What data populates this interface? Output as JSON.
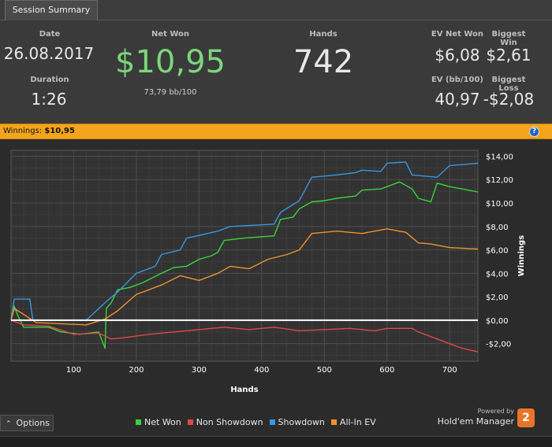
{
  "tab": {
    "label": "Session Summary"
  },
  "summary": {
    "date_label": "Date",
    "date_value": "26.08.2017",
    "duration_label": "Duration",
    "duration_value": "1:26",
    "net_won_label": "Net Won",
    "net_won_value": "$10,95",
    "net_won_sub": "73,79 bb/100",
    "hands_label": "Hands",
    "hands_value": "742",
    "ev_net_won_label": "EV Net Won",
    "ev_net_won_value": "$6,08",
    "biggest_win_label": "Biggest Win",
    "biggest_win_value": "$2,61",
    "ev_bb_label": "EV (bb/100)",
    "ev_bb_value": "40,97",
    "biggest_loss_label": "Biggest Loss",
    "biggest_loss_value": "-$2,08"
  },
  "winbar": {
    "label": "Winnings:",
    "value": "$10,95",
    "help_icon": "help-icon"
  },
  "options_label": "Options",
  "branding": {
    "powered": "Powered by",
    "name": "Hold'em Manager",
    "logo": "2"
  },
  "colors": {
    "net_won": "#3bd23b",
    "non_showdown": "#e04848",
    "showdown": "#3a96e0",
    "all_in_ev": "#f0922e",
    "zero_line": "#ffffff",
    "net_won_value": "#7bd67b"
  },
  "chart_data": {
    "type": "line",
    "xlabel": "Hands",
    "ylabel": "Winnings",
    "xlim": [
      0,
      745
    ],
    "ylim": [
      -3.5,
      14.5
    ],
    "x_ticks": [
      100,
      200,
      300,
      400,
      500,
      600,
      700
    ],
    "y_ticks": [
      {
        "value": 14,
        "label": "$14,00"
      },
      {
        "value": 12,
        "label": "$12,00"
      },
      {
        "value": 10,
        "label": "$10,00"
      },
      {
        "value": 8,
        "label": "$8,00"
      },
      {
        "value": 6,
        "label": "$6,00"
      },
      {
        "value": 4,
        "label": "$4,00"
      },
      {
        "value": 2,
        "label": "$2,00"
      },
      {
        "value": 0,
        "label": "$0,00"
      },
      {
        "value": -2,
        "label": "-$2,00"
      }
    ],
    "grid": true,
    "legend_position": "bottom",
    "series": [
      {
        "name": "Net Won",
        "color": "#3bd23b",
        "points": [
          [
            0,
            0
          ],
          [
            5,
            1.2
          ],
          [
            10,
            0.5
          ],
          [
            20,
            -0.6
          ],
          [
            60,
            -0.6
          ],
          [
            80,
            -1.0
          ],
          [
            110,
            -1.2
          ],
          [
            140,
            -1.0
          ],
          [
            150,
            -2.4
          ],
          [
            152,
            1.0
          ],
          [
            160,
            1.5
          ],
          [
            170,
            2.6
          ],
          [
            190,
            2.8
          ],
          [
            210,
            3.2
          ],
          [
            240,
            4.0
          ],
          [
            260,
            4.5
          ],
          [
            280,
            4.6
          ],
          [
            300,
            5.2
          ],
          [
            320,
            5.5
          ],
          [
            330,
            5.8
          ],
          [
            340,
            6.8
          ],
          [
            370,
            7.0
          ],
          [
            420,
            7.2
          ],
          [
            430,
            8.6
          ],
          [
            450,
            8.8
          ],
          [
            460,
            9.5
          ],
          [
            480,
            10.1
          ],
          [
            500,
            10.2
          ],
          [
            520,
            10.4
          ],
          [
            550,
            10.6
          ],
          [
            560,
            11.1
          ],
          [
            590,
            11.2
          ],
          [
            600,
            11.4
          ],
          [
            620,
            11.8
          ],
          [
            640,
            11.2
          ],
          [
            650,
            10.4
          ],
          [
            670,
            10.1
          ],
          [
            680,
            11.7
          ],
          [
            700,
            11.4
          ],
          [
            720,
            11.2
          ],
          [
            745,
            10.95
          ]
        ]
      },
      {
        "name": "Non Showdown",
        "color": "#e04848",
        "points": [
          [
            0,
            0
          ],
          [
            20,
            -0.4
          ],
          [
            60,
            -0.5
          ],
          [
            100,
            -1.2
          ],
          [
            140,
            -1.1
          ],
          [
            160,
            -1.6
          ],
          [
            180,
            -1.5
          ],
          [
            220,
            -1.2
          ],
          [
            260,
            -1.0
          ],
          [
            300,
            -0.8
          ],
          [
            340,
            -0.6
          ],
          [
            380,
            -0.8
          ],
          [
            420,
            -0.6
          ],
          [
            460,
            -0.9
          ],
          [
            500,
            -0.8
          ],
          [
            540,
            -0.7
          ],
          [
            580,
            -0.9
          ],
          [
            600,
            -0.7
          ],
          [
            640,
            -0.7
          ],
          [
            650,
            -1.0
          ],
          [
            680,
            -1.6
          ],
          [
            700,
            -2.0
          ],
          [
            720,
            -2.4
          ],
          [
            745,
            -2.7
          ]
        ]
      },
      {
        "name": "Showdown",
        "color": "#3a96e0",
        "points": [
          [
            0,
            0
          ],
          [
            5,
            1.8
          ],
          [
            30,
            1.8
          ],
          [
            35,
            0
          ],
          [
            120,
            0
          ],
          [
            150,
            1.5
          ],
          [
            170,
            2.4
          ],
          [
            200,
            4.0
          ],
          [
            230,
            4.6
          ],
          [
            240,
            5.6
          ],
          [
            270,
            6.0
          ],
          [
            280,
            7.0
          ],
          [
            330,
            7.6
          ],
          [
            350,
            8.0
          ],
          [
            420,
            8.2
          ],
          [
            430,
            9.2
          ],
          [
            460,
            10.2
          ],
          [
            480,
            12.2
          ],
          [
            520,
            12.4
          ],
          [
            550,
            12.6
          ],
          [
            560,
            12.8
          ],
          [
            590,
            12.7
          ],
          [
            600,
            13.4
          ],
          [
            630,
            13.5
          ],
          [
            640,
            12.4
          ],
          [
            680,
            12.2
          ],
          [
            700,
            13.2
          ],
          [
            745,
            13.4
          ]
        ]
      },
      {
        "name": "All-In EV",
        "color": "#f0922e",
        "points": [
          [
            0,
            0
          ],
          [
            5,
            1.0
          ],
          [
            20,
            0.5
          ],
          [
            40,
            -0.2
          ],
          [
            120,
            -0.4
          ],
          [
            150,
            0.1
          ],
          [
            170,
            0.8
          ],
          [
            200,
            2.2
          ],
          [
            240,
            3.0
          ],
          [
            270,
            3.8
          ],
          [
            300,
            3.4
          ],
          [
            330,
            4.0
          ],
          [
            350,
            4.6
          ],
          [
            380,
            4.4
          ],
          [
            410,
            5.2
          ],
          [
            440,
            5.6
          ],
          [
            460,
            6.0
          ],
          [
            480,
            7.4
          ],
          [
            520,
            7.6
          ],
          [
            560,
            7.4
          ],
          [
            600,
            7.8
          ],
          [
            630,
            7.5
          ],
          [
            650,
            6.6
          ],
          [
            670,
            6.5
          ],
          [
            700,
            6.2
          ],
          [
            745,
            6.08
          ]
        ]
      }
    ]
  }
}
